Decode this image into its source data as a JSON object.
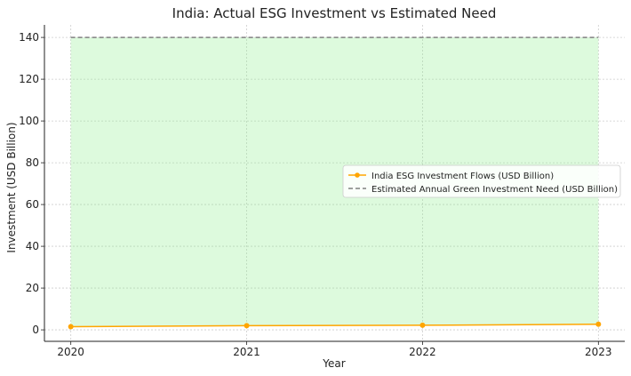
{
  "chart_data": {
    "type": "line",
    "title": "India: Actual ESG Investment vs Estimated Need",
    "xlabel": "Year",
    "ylabel": "Investment (USD Billion)",
    "x": [
      2020,
      2021,
      2022,
      2023
    ],
    "xlim": [
      2019.85,
      2023.15
    ],
    "ylim": [
      -5.5,
      146
    ],
    "yticks": [
      0,
      20,
      40,
      60,
      80,
      100,
      120,
      140
    ],
    "grid": true,
    "legend_position": "center-right",
    "series": [
      {
        "name": "India ESG Investment Flows (USD Billion)",
        "values": [
          1.5,
          2.0,
          2.2,
          2.7
        ],
        "color": "#ffa500",
        "style": "solid-with-markers"
      },
      {
        "name": "Estimated Annual Green Investment Need (USD Billion)",
        "values": [
          140,
          140,
          140,
          140
        ],
        "color": "#808080",
        "style": "dashed"
      }
    ],
    "fill_between": {
      "lower_series": 0,
      "upper_series": 1,
      "color": "#90ee90",
      "opacity": 0.3
    }
  }
}
